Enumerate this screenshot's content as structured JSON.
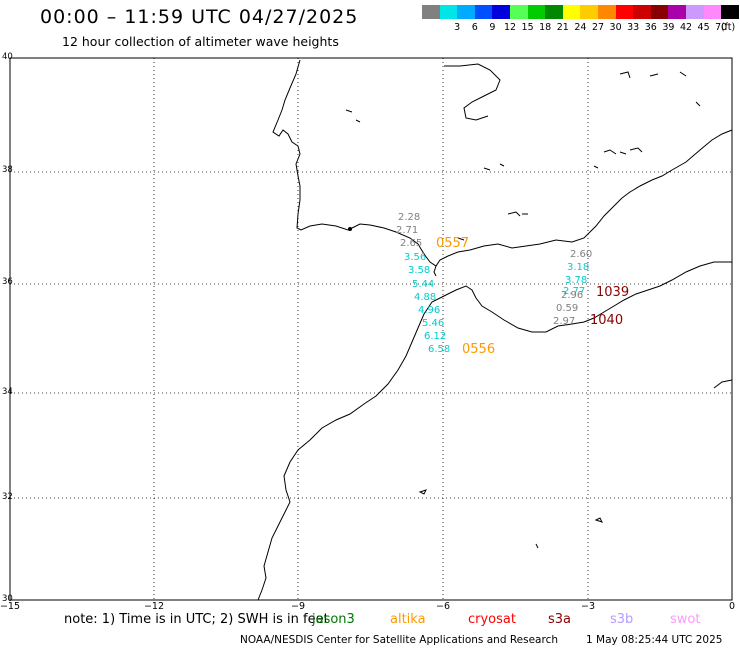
{
  "header": {
    "title": "00:00 – 11:59 UTC 04/27/2025",
    "subtitle": "12 hour collection of altimeter wave heights"
  },
  "color_scale": {
    "unit": "(ft)",
    "entries": [
      {
        "label": "",
        "color": "#808080"
      },
      {
        "label": "3",
        "color": "#00e5e5"
      },
      {
        "label": "6",
        "color": "#00aaff"
      },
      {
        "label": "9",
        "color": "#0050ff"
      },
      {
        "label": "12",
        "color": "#0000dd"
      },
      {
        "label": "15",
        "color": "#55ff55"
      },
      {
        "label": "18",
        "color": "#00cc00"
      },
      {
        "label": "21",
        "color": "#008800"
      },
      {
        "label": "24",
        "color": "#ffff00"
      },
      {
        "label": "27",
        "color": "#ffcc00"
      },
      {
        "label": "30",
        "color": "#ff8800"
      },
      {
        "label": "33",
        "color": "#ff0000"
      },
      {
        "label": "36",
        "color": "#cc0000"
      },
      {
        "label": "39",
        "color": "#880000"
      },
      {
        "label": "42",
        "color": "#aa00aa"
      },
      {
        "label": "45",
        "color": "#cc99ff"
      },
      {
        "label": "70",
        "color": "#ff88ff"
      },
      {
        "label": "",
        "color": "#000000"
      }
    ]
  },
  "axes": {
    "y_labels": [
      "40",
      "38",
      "36",
      "34",
      "32",
      "30"
    ],
    "x_labels": [
      "−15",
      "−12",
      "−9",
      "−6",
      "−3",
      "0"
    ]
  },
  "observations": {
    "track_north": [
      "2.28",
      "2.71",
      "2.65",
      "3.56",
      "3.58",
      "5.44",
      "4.88",
      "4.96",
      "5.46",
      "6.12",
      "6.58"
    ],
    "track_north_colors": [
      "#808080",
      "#808080",
      "#808080",
      "#00cccc",
      "#00cccc",
      "#00cccc",
      "#00cccc",
      "#00cccc",
      "#00cccc",
      "#00cccc",
      "#00cccc"
    ],
    "track_east": [
      "2.60",
      "3.18",
      "3.78",
      "2.77",
      "2.96",
      "0.59",
      "2.97"
    ],
    "track_east_colors": [
      "#808080",
      "#00cccc",
      "#00cccc",
      "#00cccc",
      "#808080",
      "#808080",
      "#808080"
    ],
    "time_labels": [
      {
        "text": "0557",
        "color": "#ff9900"
      },
      {
        "text": "0556",
        "color": "#ff9900"
      },
      {
        "text": "1039",
        "color": "#8b0000"
      },
      {
        "text": "1040",
        "color": "#8b0000"
      }
    ]
  },
  "footer": {
    "note": "note:  1) Time is in UTC;  2) SWH is in feet",
    "satellites": [
      {
        "name": "jason3",
        "color": "#007700"
      },
      {
        "name": "altika",
        "color": "#ff9900"
      },
      {
        "name": "cryosat",
        "color": "#ff0000"
      },
      {
        "name": "s3a",
        "color": "#8b0000"
      },
      {
        "name": "s3b",
        "color": "#b59cff"
      },
      {
        "name": "swot",
        "color": "#ff99ff"
      }
    ],
    "credit": "NOAA/NESDIS Center for Satellite Applications and Research",
    "generated": "1 May 08:25:44 UTC 2025"
  }
}
